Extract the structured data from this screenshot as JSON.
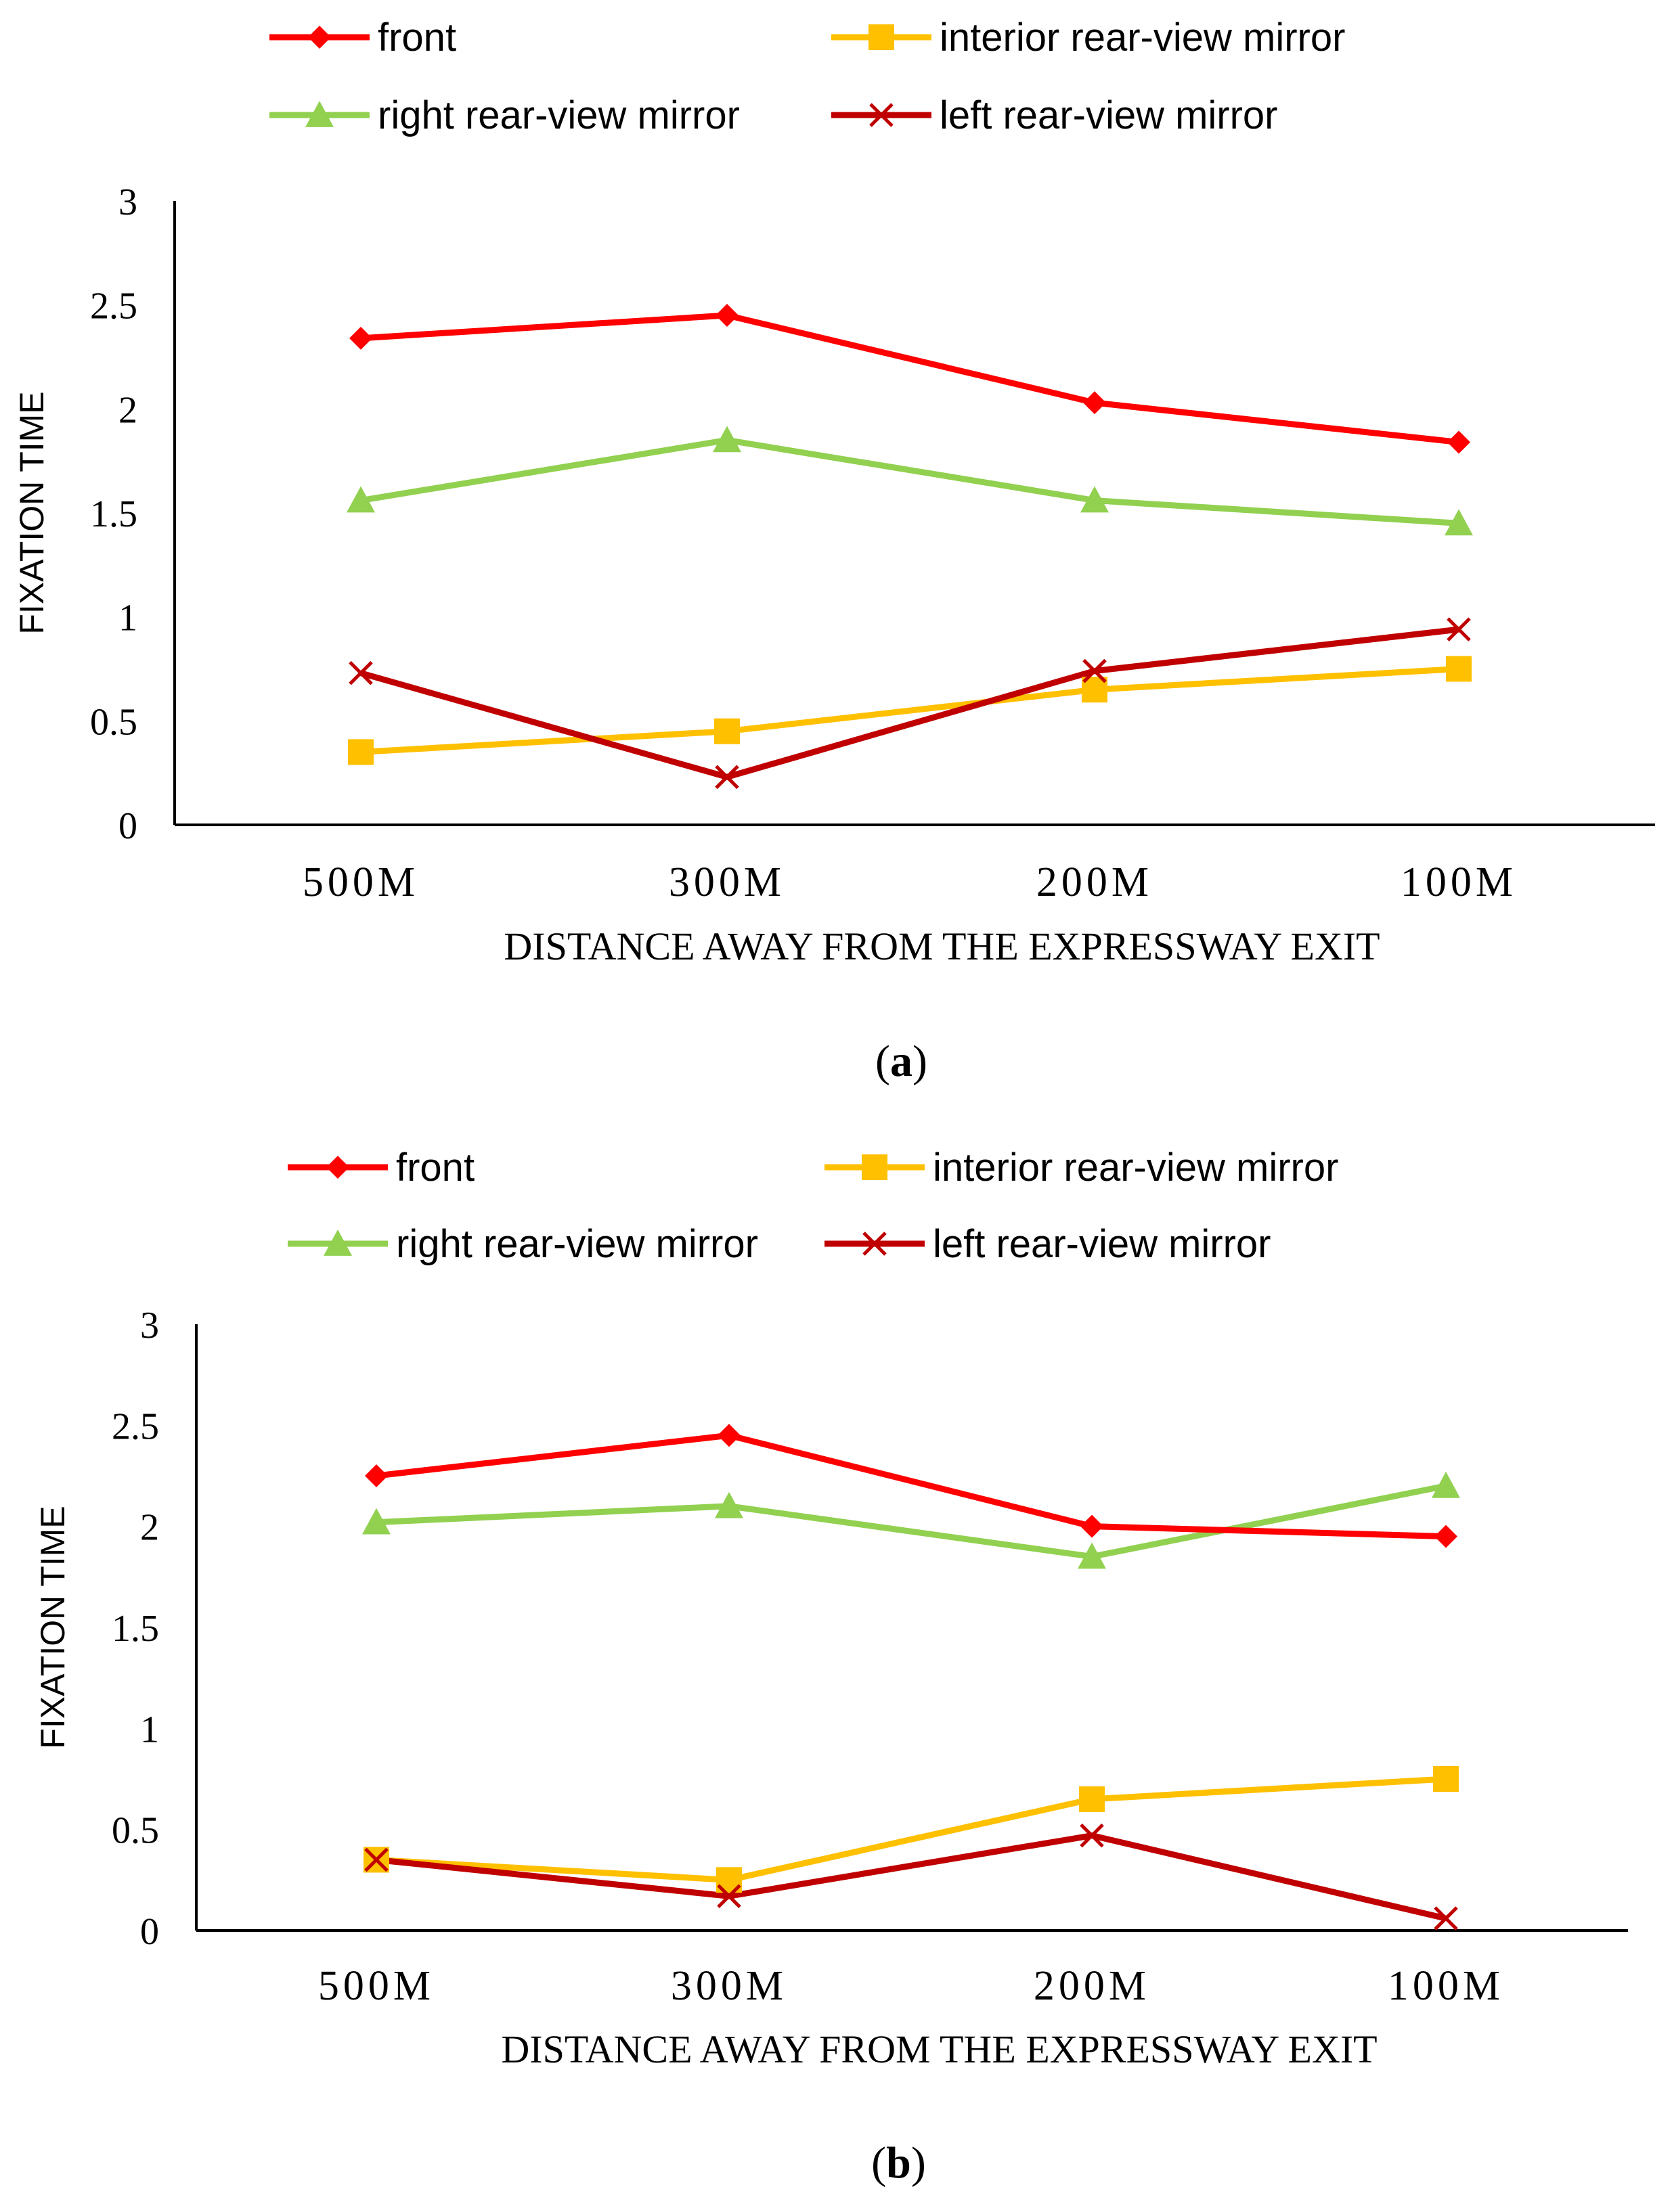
{
  "colors": {
    "front": "#ff0000",
    "interior": "#ffc000",
    "right": "#92d050",
    "left": "#c00000",
    "axis": "#000000"
  },
  "chart_data": [
    {
      "type": "line",
      "panel_label": "a",
      "categories": [
        "500M",
        "300M",
        "200M",
        "100M"
      ],
      "xlabel": "DISTANCE AWAY FROM THE EXPRESSWAY EXIT",
      "ylabel": "FIXATION TIME",
      "ylim": [
        0,
        3
      ],
      "yticks": [
        "0",
        "0.5",
        "1",
        "1.5",
        "2",
        "2.5",
        "3"
      ],
      "legend": "top",
      "series": [
        {
          "name": "front",
          "color": "#ff0000",
          "marker": "diamond",
          "values": [
            2.34,
            2.45,
            2.03,
            1.84
          ]
        },
        {
          "name": "interior rear-view mirror",
          "color": "#ffc000",
          "marker": "square",
          "values": [
            0.35,
            0.45,
            0.65,
            0.75
          ]
        },
        {
          "name": "right rear-view mirror",
          "color": "#92d050",
          "marker": "triangle",
          "values": [
            1.56,
            1.85,
            1.56,
            1.45
          ]
        },
        {
          "name": "left rear-view mirror",
          "color": "#c00000",
          "marker": "x",
          "values": [
            0.73,
            0.23,
            0.74,
            0.94
          ]
        }
      ]
    },
    {
      "type": "line",
      "panel_label": "b",
      "categories": [
        "500M",
        "300M",
        "200M",
        "100M"
      ],
      "xlabel": "DISTANCE AWAY FROM THE EXPRESSWAY EXIT",
      "ylabel": "FIXATION TIME",
      "ylim": [
        0,
        3
      ],
      "yticks": [
        "0",
        "0.5",
        "1",
        "1.5",
        "2",
        "2.5",
        "3"
      ],
      "legend": "top",
      "series": [
        {
          "name": "front",
          "color": "#ff0000",
          "marker": "diamond",
          "values": [
            2.25,
            2.45,
            2.0,
            1.95
          ]
        },
        {
          "name": "interior rear-view mirror",
          "color": "#ffc000",
          "marker": "square",
          "values": [
            0.35,
            0.25,
            0.65,
            0.75
          ]
        },
        {
          "name": "right rear-view mirror",
          "color": "#92d050",
          "marker": "triangle",
          "values": [
            2.02,
            2.1,
            1.85,
            2.2
          ]
        },
        {
          "name": "left rear-view mirror",
          "color": "#c00000",
          "marker": "x",
          "values": [
            0.35,
            0.17,
            0.47,
            0.06
          ]
        }
      ]
    }
  ]
}
